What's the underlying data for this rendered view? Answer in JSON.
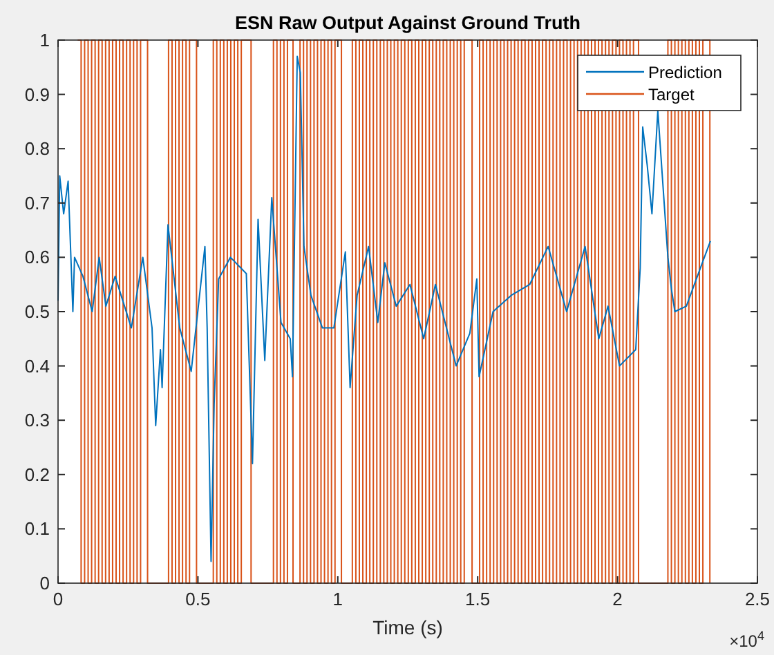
{
  "chart_data": {
    "type": "line",
    "title": "ESN Raw Output Against Ground Truth",
    "xlabel": "Time (s)",
    "annotations": [
      "×10$^{4}$"
    ],
    "xlim": [
      0,
      2.5
    ],
    "ylim": [
      0,
      1
    ],
    "xticks": [
      0,
      0.5,
      1,
      1.5,
      2,
      2.5
    ],
    "yticks": [
      0,
      0.1,
      0.2,
      0.3,
      0.4,
      0.5,
      0.6,
      0.7,
      0.8,
      0.9,
      1
    ],
    "grid": false,
    "legend": "top right",
    "line_style": "solid",
    "marker": "none",
    "series": [
      {
        "name": "Target",
        "type": "step",
        "color": "#d95319",
        "x": [
          0.07,
          0.0825,
          0.095,
          0.1075,
          0.12,
          0.1325,
          0.145,
          0.1575,
          0.17,
          0.1825,
          0.195,
          0.2075,
          0.22,
          0.2325,
          0.245,
          0.2575,
          0.27,
          0.2825,
          0.295,
          0.32,
          0.395,
          0.4075,
          0.42,
          0.4325,
          0.445,
          0.4575,
          0.47,
          0.495,
          0.555,
          0.5675,
          0.58,
          0.5925,
          0.605,
          0.6175,
          0.63,
          0.6425,
          0.655,
          0.69,
          0.77,
          0.7825,
          0.795,
          0.8075,
          0.82,
          0.84,
          0.865,
          0.8775,
          0.89,
          0.9025,
          0.915,
          0.9275,
          0.94,
          0.9525,
          0.965,
          0.9775,
          0.99,
          1.013,
          1.052,
          1.0645,
          1.077,
          1.0895,
          1.102,
          1.1145,
          1.127,
          1.1395,
          1.152,
          1.1645,
          1.177,
          1.1895,
          1.202,
          1.2145,
          1.227,
          1.2395,
          1.252,
          1.2645,
          1.277,
          1.2895,
          1.302,
          1.3145,
          1.327,
          1.3395,
          1.352,
          1.3645,
          1.377,
          1.3895,
          1.402,
          1.4145,
          1.427,
          1.4395,
          1.452,
          1.48,
          1.507,
          1.5195,
          1.532,
          1.5445,
          1.557,
          1.5695,
          1.582,
          1.5945,
          1.607,
          1.6195,
          1.632,
          1.6445,
          1.657,
          1.6695,
          1.682,
          1.6945,
          1.707,
          1.7195,
          1.732,
          1.7445,
          1.757,
          1.7695,
          1.782,
          1.7945,
          1.807,
          1.8195,
          1.832,
          1.8445,
          1.857,
          1.8695,
          1.882,
          1.8945,
          1.907,
          1.9195,
          1.932,
          1.9445,
          1.957,
          1.9695,
          1.982,
          1.9945,
          2.007,
          2.0195,
          2.032,
          2.0445,
          2.057,
          2.075,
          2.18,
          2.1925,
          2.205,
          2.2175,
          2.23,
          2.2425,
          2.255,
          2.2675,
          2.28,
          2.2925,
          2.305,
          2.33
        ],
        "values": [
          1,
          0,
          1,
          0,
          1,
          0,
          1,
          0,
          1,
          0,
          1,
          0,
          1,
          0,
          1,
          0,
          1,
          0,
          1,
          0,
          1,
          0,
          1,
          0,
          1,
          0,
          1,
          0,
          1,
          0,
          1,
          0,
          1,
          0,
          1,
          0,
          1,
          0,
          1,
          0,
          1,
          0,
          1,
          0,
          1,
          0,
          1,
          0,
          1,
          0,
          1,
          0,
          1,
          0,
          1,
          0,
          1,
          0,
          1,
          0,
          1,
          0,
          1,
          0,
          1,
          0,
          1,
          0,
          1,
          0,
          1,
          0,
          1,
          0,
          1,
          0,
          1,
          0,
          1,
          0,
          1,
          0,
          1,
          0,
          1,
          0,
          1,
          0,
          1,
          0,
          1,
          0,
          1,
          0,
          1,
          0,
          1,
          0,
          1,
          0,
          1,
          0,
          1,
          0,
          1,
          0,
          1,
          0,
          1,
          0,
          1,
          0,
          1,
          0,
          1,
          0,
          1,
          0,
          1,
          0,
          1,
          0,
          1,
          0,
          1,
          0,
          1,
          0,
          1,
          0,
          1,
          0,
          1,
          0,
          1,
          0,
          1,
          0,
          1,
          0,
          1,
          0,
          1,
          0,
          1,
          0,
          1,
          0
        ]
      },
      {
        "name": "Prediction",
        "type": "line",
        "color": "#0072bd",
        "x": [
          0,
          0.006,
          0.02,
          0.036,
          0.053,
          0.059,
          0.089,
          0.122,
          0.147,
          0.171,
          0.204,
          0.262,
          0.303,
          0.336,
          0.349,
          0.366,
          0.372,
          0.393,
          0.435,
          0.476,
          0.525,
          0.533,
          0.547,
          0.558,
          0.574,
          0.616,
          0.673,
          0.695,
          0.715,
          0.739,
          0.764,
          0.797,
          0.83,
          0.838,
          0.855,
          0.866,
          0.879,
          0.904,
          0.945,
          0.986,
          1.027,
          1.044,
          1.069,
          1.11,
          1.143,
          1.168,
          1.209,
          1.258,
          1.307,
          1.349,
          1.423,
          1.472,
          1.497,
          1.505,
          1.555,
          1.62,
          1.686,
          1.752,
          1.818,
          1.884,
          1.933,
          1.966,
          2.007,
          2.065,
          2.081,
          2.09,
          2.106,
          2.123,
          2.144,
          2.18,
          2.193,
          2.205,
          2.246,
          2.296,
          2.332
        ],
        "values": [
          0.52,
          0.75,
          0.68,
          0.74,
          0.5,
          0.6,
          0.565,
          0.5,
          0.6,
          0.51,
          0.565,
          0.47,
          0.6,
          0.47,
          0.29,
          0.43,
          0.36,
          0.66,
          0.47,
          0.39,
          0.62,
          0.47,
          0.04,
          0.33,
          0.56,
          0.6,
          0.57,
          0.22,
          0.67,
          0.41,
          0.71,
          0.48,
          0.45,
          0.38,
          0.97,
          0.94,
          0.62,
          0.53,
          0.47,
          0.47,
          0.61,
          0.36,
          0.53,
          0.62,
          0.48,
          0.59,
          0.51,
          0.55,
          0.45,
          0.55,
          0.4,
          0.46,
          0.56,
          0.38,
          0.5,
          0.53,
          0.55,
          0.62,
          0.5,
          0.62,
          0.45,
          0.51,
          0.4,
          0.43,
          0.58,
          0.84,
          0.77,
          0.68,
          0.87,
          0.6,
          0.54,
          0.5,
          0.51,
          0.58,
          0.63
        ]
      }
    ]
  }
}
